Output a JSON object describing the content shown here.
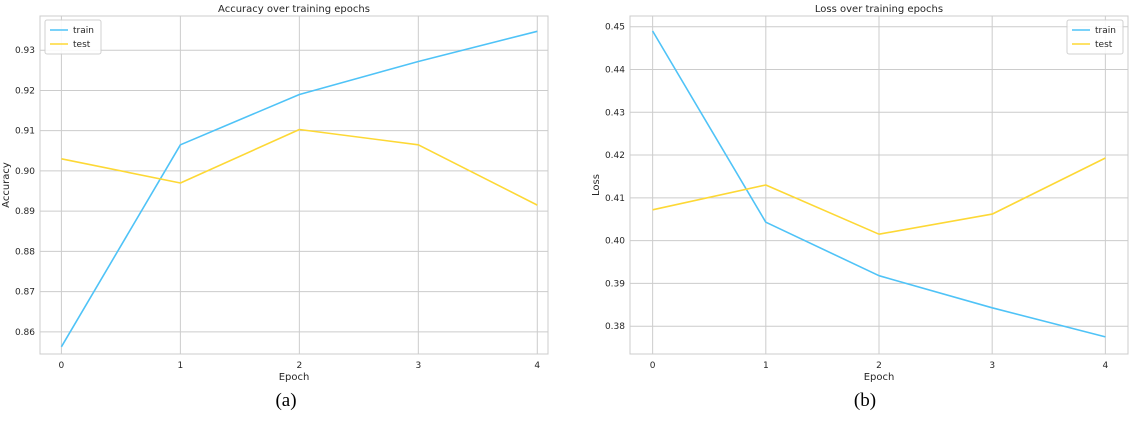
{
  "chart_data": [
    {
      "type": "line",
      "title": "Accuracy over training epochs",
      "xlabel": "Epoch",
      "ylabel": "Accuracy",
      "x": [
        0,
        1,
        2,
        3,
        4
      ],
      "xticks": [
        "0",
        "1",
        "2",
        "3",
        "4"
      ],
      "yticks": [
        "0.86",
        "0.87",
        "0.88",
        "0.89",
        "0.90",
        "0.91",
        "0.92",
        "0.93"
      ],
      "xlim": [
        -0.18,
        4.09
      ],
      "ylim": [
        0.8545,
        0.9385
      ],
      "grid": true,
      "legend": "top-left",
      "caption": "(a)",
      "series": [
        {
          "name": "train",
          "color": "#4fc3f7",
          "values": [
            0.8563,
            0.9065,
            0.919,
            0.9272,
            0.9347
          ]
        },
        {
          "name": "test",
          "color": "#fdd835",
          "values": [
            0.903,
            0.897,
            0.9103,
            0.9065,
            0.8915
          ]
        }
      ]
    },
    {
      "type": "line",
      "title": "Loss over training epochs",
      "xlabel": "Epoch",
      "ylabel": "Loss",
      "x": [
        0,
        1,
        2,
        3,
        4
      ],
      "xticks": [
        "0",
        "1",
        "2",
        "3",
        "4"
      ],
      "yticks": [
        "0.38",
        "0.39",
        "0.40",
        "0.41",
        "0.42",
        "0.43",
        "0.44",
        "0.45"
      ],
      "xlim": [
        -0.2,
        4.2
      ],
      "ylim": [
        0.3735,
        0.4525
      ],
      "grid": true,
      "legend": "top-right",
      "caption": "(b)",
      "series": [
        {
          "name": "train",
          "color": "#4fc3f7",
          "values": [
            0.449,
            0.4043,
            0.3918,
            0.3843,
            0.3775
          ]
        },
        {
          "name": "test",
          "color": "#fdd835",
          "values": [
            0.4072,
            0.413,
            0.4015,
            0.4062,
            0.4193
          ]
        }
      ]
    }
  ]
}
